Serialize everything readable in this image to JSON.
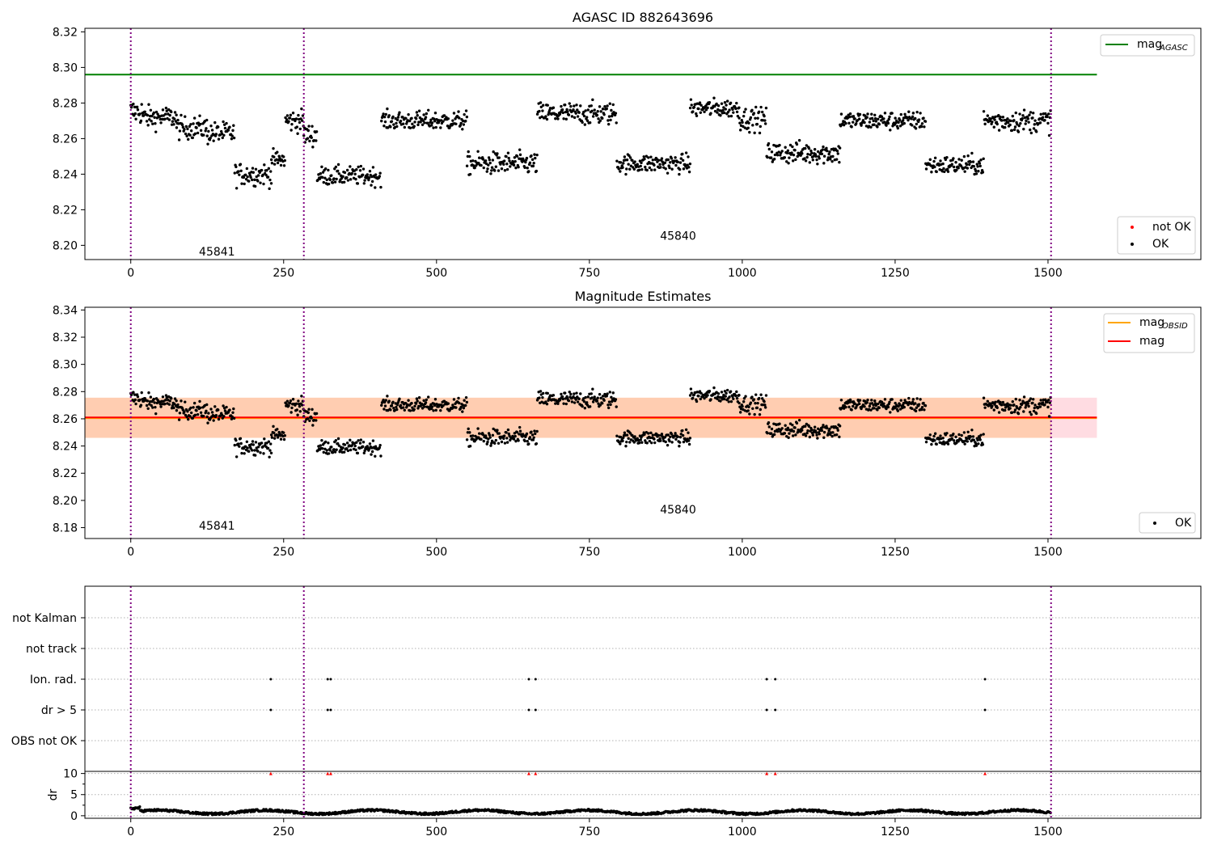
{
  "chart_data": [
    {
      "type": "scatter",
      "title": "AGASC ID 882643696",
      "xlabel": "",
      "ylabel": "",
      "xlim": [
        -75,
        1750
      ],
      "ylim": [
        8.192,
        8.322
      ],
      "xticks": [
        0,
        250,
        500,
        750,
        1000,
        1250,
        1500
      ],
      "yticks": [
        8.2,
        8.22,
        8.24,
        8.26,
        8.28,
        8.3,
        8.32
      ],
      "grid": false,
      "obsid_boundaries": [
        0,
        283,
        1505
      ],
      "obsid_labels": [
        {
          "text": "45841",
          "x": 141,
          "y": 8.1965
        },
        {
          "text": "45840",
          "x": 895,
          "y": 8.2055
        }
      ],
      "reference_lines": [
        {
          "name": "mag_AGASC",
          "y": 8.296,
          "x_range": [
            -75,
            1580
          ],
          "color": "#008000"
        }
      ],
      "segments": [
        {
          "x_range": [
            0,
            20
          ],
          "mean": 8.275,
          "spread": 0.007
        },
        {
          "x_range": [
            20,
            75
          ],
          "mean": 8.272,
          "spread": 0.006
        },
        {
          "x_range": [
            75,
            125
          ],
          "mean": 8.266,
          "spread": 0.006
        },
        {
          "x_range": [
            125,
            170
          ],
          "mean": 8.263,
          "spread": 0.006
        },
        {
          "x_range": [
            170,
            230
          ],
          "mean": 8.24,
          "spread": 0.006
        },
        {
          "x_range": [
            230,
            253
          ],
          "mean": 8.248,
          "spread": 0.005
        },
        {
          "x_range": [
            253,
            283
          ],
          "mean": 8.27,
          "spread": 0.006
        },
        {
          "x_range": [
            283,
            305
          ],
          "mean": 8.262,
          "spread": 0.006
        },
        {
          "x_range": [
            305,
            410
          ],
          "mean": 8.239,
          "spread": 0.005
        },
        {
          "x_range": [
            410,
            550
          ],
          "mean": 8.27,
          "spread": 0.005
        },
        {
          "x_range": [
            550,
            665
          ],
          "mean": 8.246,
          "spread": 0.006
        },
        {
          "x_range": [
            665,
            795
          ],
          "mean": 8.274,
          "spread": 0.006
        },
        {
          "x_range": [
            795,
            915
          ],
          "mean": 8.246,
          "spread": 0.005
        },
        {
          "x_range": [
            915,
            995
          ],
          "mean": 8.277,
          "spread": 0.005
        },
        {
          "x_range": [
            995,
            1040
          ],
          "mean": 8.271,
          "spread": 0.006
        },
        {
          "x_range": [
            1040,
            1160
          ],
          "mean": 8.252,
          "spread": 0.006
        },
        {
          "x_range": [
            1160,
            1300
          ],
          "mean": 8.27,
          "spread": 0.005
        },
        {
          "x_range": [
            1300,
            1395
          ],
          "mean": 8.245,
          "spread": 0.005
        },
        {
          "x_range": [
            1395,
            1505
          ],
          "mean": 8.27,
          "spread": 0.006
        }
      ],
      "legend": [
        {
          "label": "mag",
          "sub": "AGASC",
          "color": "#008000",
          "kind": "line",
          "placement": "upper-right"
        },
        {
          "label": "not OK",
          "color": "#ff0000",
          "kind": "point",
          "placement": "lower-right"
        },
        {
          "label": "OK",
          "color": "#000000",
          "kind": "point",
          "placement": "lower-right"
        }
      ]
    },
    {
      "type": "scatter",
      "title": "Magnitude Estimates",
      "xlabel": "",
      "ylabel": "",
      "xlim": [
        -75,
        1750
      ],
      "ylim": [
        8.172,
        8.342
      ],
      "xticks": [
        0,
        250,
        500,
        750,
        1000,
        1250,
        1500
      ],
      "yticks": [
        8.18,
        8.2,
        8.22,
        8.24,
        8.26,
        8.28,
        8.3,
        8.32,
        8.34
      ],
      "grid": false,
      "obsid_boundaries": [
        0,
        283,
        1505
      ],
      "obsid_labels": [
        {
          "text": "45841",
          "x": 141,
          "y": 8.1815
        },
        {
          "text": "45840",
          "x": 895,
          "y": 8.1935
        }
      ],
      "reference_lines": [
        {
          "name": "mag_OBSID",
          "y": 8.2605,
          "x_range": [
            -75,
            1580
          ],
          "color": "#ffa500"
        },
        {
          "name": "mag",
          "y": 8.261,
          "x_range": [
            -75,
            1580
          ],
          "color": "#ff0000"
        }
      ],
      "bands": [
        {
          "y_range": [
            8.246,
            8.2755
          ],
          "x_range": [
            -75,
            1580
          ],
          "color": "#ffc0cb"
        },
        {
          "y_range": [
            8.246,
            8.2755
          ],
          "x_range": [
            -75,
            1505
          ],
          "color": "#ffc8a0"
        }
      ],
      "legend": [
        {
          "label": "mag",
          "sub": "OBSID",
          "color": "#ffa500",
          "kind": "line",
          "placement": "upper-right"
        },
        {
          "label": "mag",
          "color": "#ff0000",
          "kind": "line",
          "placement": "upper-right"
        },
        {
          "label": "OK",
          "color": "#000000",
          "kind": "point",
          "placement": "lower-right"
        }
      ]
    },
    {
      "type": "scatter",
      "title": "",
      "xlim": [
        -75,
        1750
      ],
      "categories": [
        "not Kalman",
        "not track",
        "Ion. rad.",
        "dr > 5",
        "OBS not OK"
      ],
      "flag_events": [
        {
          "category": "Ion. rad.",
          "x": [
            229,
            322,
            327,
            651,
            662,
            1040,
            1054,
            1397
          ]
        },
        {
          "category": "dr > 5",
          "x": [
            229,
            322,
            327,
            651,
            662,
            1040,
            1054,
            1397
          ]
        }
      ],
      "grid": true,
      "obsid_boundaries": [
        0,
        283,
        1505
      ]
    },
    {
      "type": "scatter",
      "title": "",
      "xlabel": "",
      "ylabel": "dr",
      "xlim": [
        -75,
        1750
      ],
      "ylim": [
        -0.6,
        10.5
      ],
      "xticks": [
        0,
        250,
        500,
        750,
        1000,
        1250,
        1500
      ],
      "yticks": [
        0,
        5,
        10
      ],
      "grid": true,
      "obsid_boundaries": [
        0,
        283,
        1505
      ],
      "outliers_clipped_at": 10,
      "outlier_x": [
        229,
        322,
        327,
        651,
        662,
        1040,
        1054,
        1397
      ],
      "typical_dr_range": [
        0.3,
        1.5
      ]
    }
  ]
}
